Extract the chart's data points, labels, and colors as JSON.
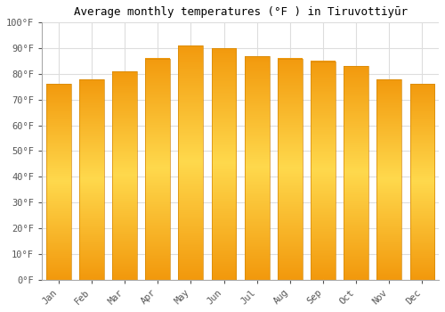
{
  "months": [
    "Jan",
    "Feb",
    "Mar",
    "Apr",
    "May",
    "Jun",
    "Jul",
    "Aug",
    "Sep",
    "Oct",
    "Nov",
    "Dec"
  ],
  "values": [
    76,
    78,
    81,
    86,
    91,
    90,
    87,
    86,
    85,
    83,
    78,
    76
  ],
  "bar_color_center": "#FFD966",
  "bar_color_edge": "#F0A000",
  "title": "Average monthly temperatures (°F ) in Tiruvottiyūr",
  "ylim": [
    0,
    100
  ],
  "ytick_step": 10,
  "background_color": "#ffffff",
  "grid_color": "#dddddd",
  "title_fontsize": 9,
  "tick_fontsize": 7.5
}
